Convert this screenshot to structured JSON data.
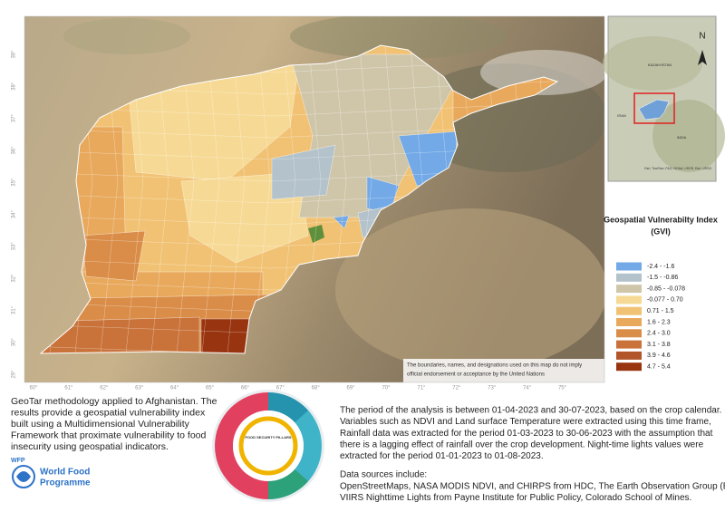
{
  "map": {
    "longitude_labels": [
      "60°",
      "61°",
      "62°",
      "63°",
      "64°",
      "65°",
      "66°",
      "67°",
      "68°",
      "69°",
      "70°",
      "71°",
      "72°",
      "73°",
      "74°",
      "75°"
    ],
    "latitude_labels": [
      "39°",
      "38°",
      "37°",
      "36°",
      "35°",
      "34°",
      "33°",
      "32°",
      "31°",
      "30°",
      "29°"
    ],
    "disclaimer": [
      "The boundaries, names, and designations used on this map do not imply",
      "official endorsement or acceptance by the United Nations"
    ],
    "legend": {
      "title": "Geospatial Vulnerabilty Index",
      "subtitle": "(GVI)",
      "items": [
        {
          "label": "-2.4 - -1.6",
          "color": "#72a9e6"
        },
        {
          "label": "-1.5 - -0.86",
          "color": "#b3c2cb"
        },
        {
          "label": "-0.85 - -0.078",
          "color": "#cfc6aa"
        },
        {
          "label": "-0.077 - 0.70",
          "color": "#f6d994"
        },
        {
          "label": "0.71 - 1.5",
          "color": "#f1c274"
        },
        {
          "label": "1.6 - 2.3",
          "color": "#e8a95d"
        },
        {
          "label": "2.4 - 3.0",
          "color": "#da8d48"
        },
        {
          "label": "3.1 - 3.8",
          "color": "#c9733a"
        },
        {
          "label": "3.9 - 4.6",
          "color": "#b2562a"
        },
        {
          "label": "4.7 - 5.4",
          "color": "#983410"
        }
      ]
    }
  },
  "inset": {
    "north": "N",
    "labels": [
      "KAZAKHSTAN",
      "IRAN",
      "INDIA"
    ],
    "attribution": "Esri, TomTom, FAO, NOAA, USGS, Esri, USGS"
  },
  "intro": [
    "GeoTar methodology applied to Afghanistan. The",
    "results  provide a geospatial vulnerability index",
    "built using a Multidimensional Vulnerability",
    "Framework that proximate vulnerability to food",
    "insecurity using geospatial indicators."
  ],
  "logo": {
    "acronym": "WFP",
    "name": [
      "World Food",
      "Programme"
    ]
  },
  "diagram": {
    "center_label": "FOOD SECURITY PILLARS"
  },
  "analysis": {
    "paragraph": [
      "The period of the analysis is between 01-04-2023 and 30-07-2023, based on the crop calendar.",
      "Variables such as NDVI and Land surface Temperature were extracted using this time frame,",
      "Rainfall data was extracted for the period 01-03-2023 to 30-06-2023 with the assumption that",
      "there is a lagging effect of rainfall over the crop development. Night-time lights values were",
      "extracted for the period 01-01-2023 to 01-08-2023."
    ],
    "sources_title": "Data sources include:",
    "sources": [
      "OpenStreetMaps, NASA MODIS NDVI, and CHIRPS from HDC, The Earth Observation Group (EOG),",
      "VIIRS Nighttime Lights from Payne Institute for Public Policy, Colorado School of Mines."
    ]
  }
}
